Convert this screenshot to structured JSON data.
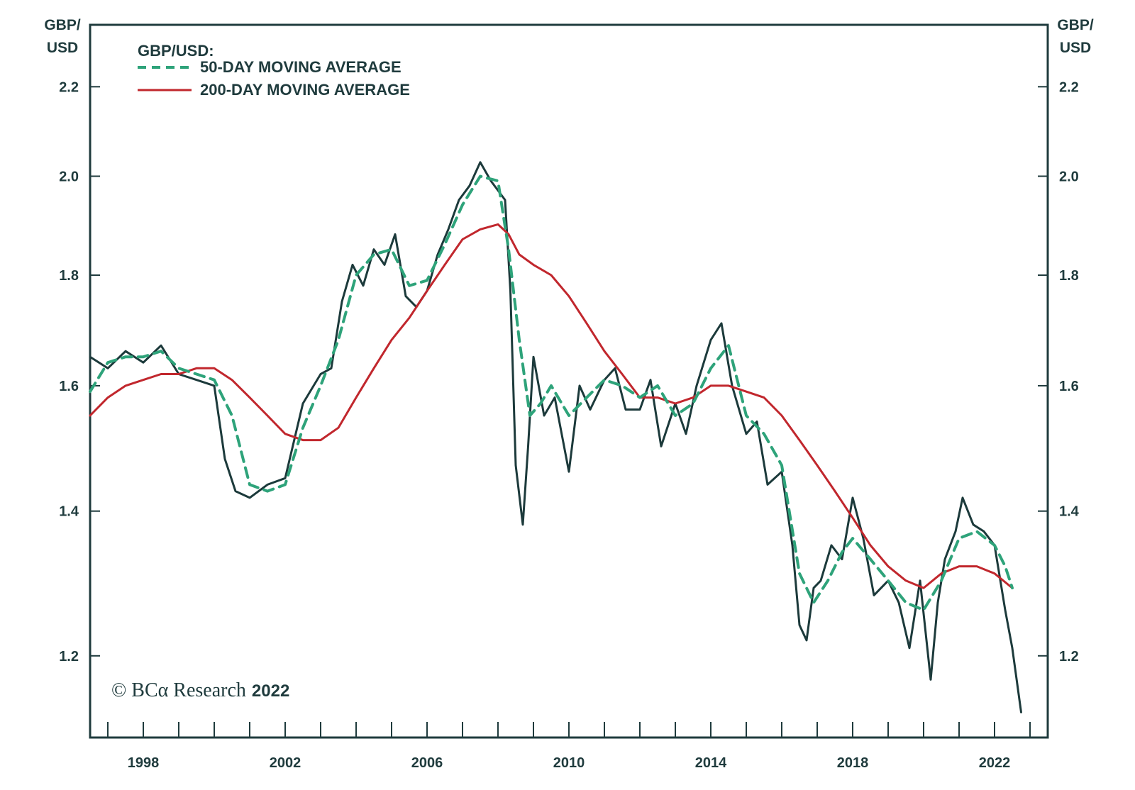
{
  "chart_data": {
    "type": "line",
    "legend_title": "GBP/USD:",
    "left_axis_unit": [
      "GBP/",
      "USD"
    ],
    "right_axis_unit": [
      "GBP/",
      "USD"
    ],
    "y_scale": "log",
    "ylim": [
      1.1,
      2.35
    ],
    "xlim": [
      1996.5,
      2023.5
    ],
    "yticks": [
      1.2,
      1.4,
      1.6,
      1.8,
      2.0,
      2.2
    ],
    "ytick_labels": [
      "1.2",
      "1.4",
      "1.6",
      "1.8",
      "2.0",
      "2.2"
    ],
    "xtick_labels": [
      "1998",
      "2002",
      "2006",
      "2010",
      "2014",
      "2018",
      "2022"
    ],
    "xtick_values": [
      1998,
      2002,
      2006,
      2010,
      2014,
      2018,
      2022
    ],
    "grid": false,
    "legend_position": "top-left",
    "colors": {
      "spot": "#1c3a3b",
      "ma50": "#2ea37a",
      "ma200": "#c1272d",
      "axis": "#1f3b3d"
    },
    "series": [
      {
        "name": "GBP/USD",
        "style": "solid",
        "x": [
          1996.5,
          1997.0,
          1997.5,
          1998.0,
          1998.5,
          1999.0,
          1999.5,
          2000.0,
          2000.3,
          2000.6,
          2001.0,
          2001.5,
          2002.0,
          2002.5,
          2003.0,
          2003.3,
          2003.6,
          2003.9,
          2004.2,
          2004.5,
          2004.8,
          2005.1,
          2005.4,
          2005.7,
          2006.0,
          2006.3,
          2006.6,
          2006.9,
          2007.2,
          2007.5,
          2007.8,
          2008.0,
          2008.2,
          2008.35,
          2008.5,
          2008.7,
          2008.85,
          2009.0,
          2009.3,
          2009.6,
          2010.0,
          2010.3,
          2010.6,
          2011.0,
          2011.3,
          2011.6,
          2012.0,
          2012.3,
          2012.6,
          2013.0,
          2013.3,
          2013.6,
          2014.0,
          2014.3,
          2014.6,
          2015.0,
          2015.3,
          2015.6,
          2016.0,
          2016.3,
          2016.5,
          2016.7,
          2016.9,
          2017.1,
          2017.4,
          2017.7,
          2018.0,
          2018.3,
          2018.6,
          2019.0,
          2019.3,
          2019.6,
          2019.9,
          2020.2,
          2020.4,
          2020.6,
          2020.9,
          2021.1,
          2021.4,
          2021.7,
          2022.0,
          2022.3,
          2022.5,
          2022.75
        ],
        "values": [
          1.65,
          1.63,
          1.66,
          1.64,
          1.67,
          1.62,
          1.61,
          1.6,
          1.48,
          1.43,
          1.42,
          1.44,
          1.45,
          1.57,
          1.62,
          1.63,
          1.75,
          1.82,
          1.78,
          1.85,
          1.82,
          1.88,
          1.76,
          1.74,
          1.77,
          1.84,
          1.89,
          1.95,
          1.98,
          2.03,
          1.99,
          1.97,
          1.95,
          1.77,
          1.47,
          1.38,
          1.5,
          1.65,
          1.55,
          1.58,
          1.46,
          1.6,
          1.56,
          1.61,
          1.63,
          1.56,
          1.56,
          1.61,
          1.5,
          1.57,
          1.52,
          1.6,
          1.68,
          1.71,
          1.6,
          1.52,
          1.54,
          1.44,
          1.46,
          1.35,
          1.24,
          1.22,
          1.29,
          1.3,
          1.35,
          1.33,
          1.42,
          1.36,
          1.28,
          1.3,
          1.27,
          1.21,
          1.3,
          1.17,
          1.27,
          1.33,
          1.37,
          1.42,
          1.38,
          1.37,
          1.35,
          1.26,
          1.21,
          1.13
        ]
      },
      {
        "name": "50-DAY MOVING AVERAGE",
        "style": "dashed",
        "x": [
          1996.5,
          1997.0,
          1997.5,
          1998.0,
          1998.5,
          1999.0,
          1999.5,
          2000.0,
          2000.5,
          2001.0,
          2001.5,
          2002.0,
          2002.5,
          2003.0,
          2003.5,
          2004.0,
          2004.5,
          2005.0,
          2005.5,
          2006.0,
          2006.5,
          2007.0,
          2007.5,
          2008.0,
          2008.3,
          2008.6,
          2008.9,
          2009.2,
          2009.5,
          2010.0,
          2010.5,
          2011.0,
          2011.5,
          2012.0,
          2012.5,
          2013.0,
          2013.5,
          2014.0,
          2014.5,
          2015.0,
          2015.5,
          2016.0,
          2016.5,
          2016.9,
          2017.3,
          2017.7,
          2018.0,
          2018.5,
          2019.0,
          2019.5,
          2020.0,
          2020.5,
          2021.0,
          2021.5,
          2022.0,
          2022.3,
          2022.5
        ],
        "values": [
          1.59,
          1.64,
          1.65,
          1.65,
          1.66,
          1.63,
          1.62,
          1.61,
          1.55,
          1.44,
          1.43,
          1.44,
          1.53,
          1.6,
          1.68,
          1.8,
          1.84,
          1.85,
          1.78,
          1.79,
          1.86,
          1.94,
          2.0,
          1.99,
          1.85,
          1.68,
          1.55,
          1.57,
          1.6,
          1.55,
          1.58,
          1.61,
          1.6,
          1.58,
          1.6,
          1.55,
          1.57,
          1.63,
          1.67,
          1.55,
          1.52,
          1.47,
          1.31,
          1.27,
          1.3,
          1.34,
          1.36,
          1.33,
          1.3,
          1.27,
          1.26,
          1.3,
          1.36,
          1.37,
          1.35,
          1.32,
          1.29
        ]
      },
      {
        "name": "200-DAY MOVING AVERAGE",
        "style": "solid",
        "x": [
          1996.5,
          1997.0,
          1997.5,
          1998.0,
          1998.5,
          1999.0,
          1999.5,
          2000.0,
          2000.5,
          2001.0,
          2001.5,
          2002.0,
          2002.5,
          2003.0,
          2003.5,
          2004.0,
          2004.5,
          2005.0,
          2005.5,
          2006.0,
          2006.5,
          2007.0,
          2007.5,
          2008.0,
          2008.3,
          2008.6,
          2009.0,
          2009.5,
          2010.0,
          2010.5,
          2011.0,
          2011.5,
          2012.0,
          2012.5,
          2013.0,
          2013.5,
          2014.0,
          2014.5,
          2015.0,
          2015.5,
          2016.0,
          2016.5,
          2017.0,
          2017.5,
          2018.0,
          2018.5,
          2019.0,
          2019.5,
          2020.0,
          2020.5,
          2021.0,
          2021.5,
          2022.0,
          2022.5
        ],
        "values": [
          1.55,
          1.58,
          1.6,
          1.61,
          1.62,
          1.62,
          1.63,
          1.63,
          1.61,
          1.58,
          1.55,
          1.52,
          1.51,
          1.51,
          1.53,
          1.58,
          1.63,
          1.68,
          1.72,
          1.77,
          1.82,
          1.87,
          1.89,
          1.9,
          1.88,
          1.84,
          1.82,
          1.8,
          1.76,
          1.71,
          1.66,
          1.62,
          1.58,
          1.58,
          1.57,
          1.58,
          1.6,
          1.6,
          1.59,
          1.58,
          1.55,
          1.51,
          1.47,
          1.43,
          1.39,
          1.35,
          1.32,
          1.3,
          1.29,
          1.31,
          1.32,
          1.32,
          1.31,
          1.29
        ]
      }
    ],
    "copyright": {
      "prefix": "© BC",
      "alpha": "α",
      "name": " Research",
      "year": "2022"
    }
  }
}
